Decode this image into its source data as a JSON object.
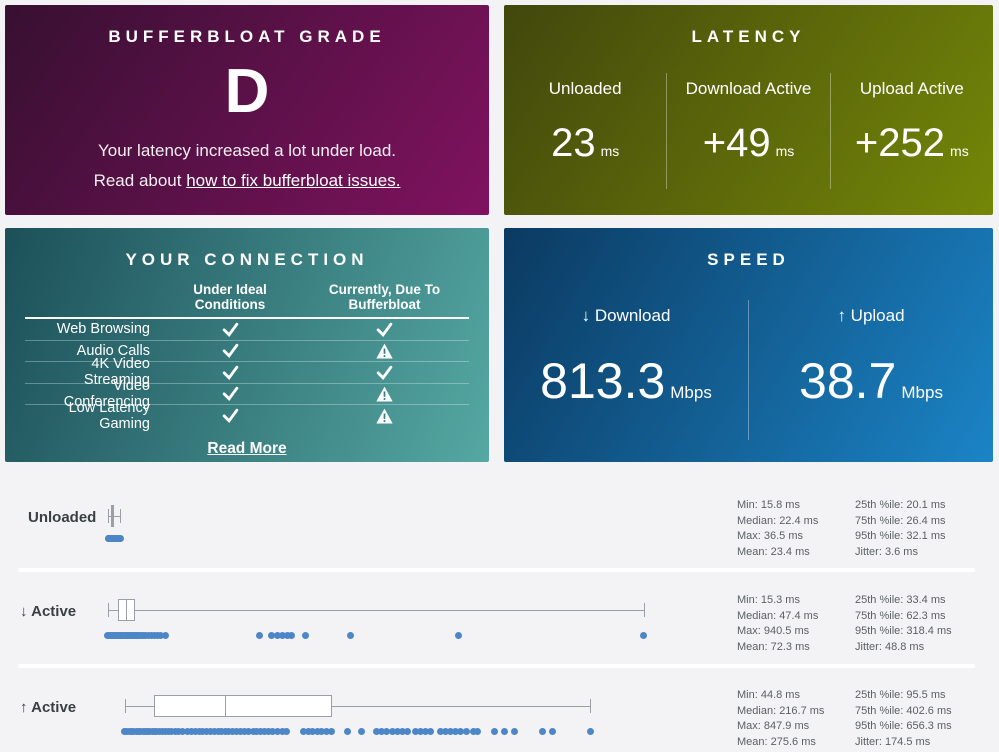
{
  "panels": {
    "grade": {
      "title": "BUFFERBLOAT GRADE",
      "grade": "D",
      "message": "Your latency increased a lot under load.",
      "read_prefix": "Read about ",
      "link_text": "how to fix bufferbloat issues."
    },
    "latency": {
      "title": "LATENCY",
      "unit": "ms",
      "columns": [
        {
          "label": "Unloaded",
          "value": "23"
        },
        {
          "label": "Download Active",
          "value": "+49"
        },
        {
          "label": "Upload Active",
          "value": "+252"
        }
      ]
    },
    "connection": {
      "title": "YOUR CONNECTION",
      "col_headers": [
        "Under Ideal Conditions",
        "Currently, Due To Bufferbloat"
      ],
      "rows": [
        {
          "label": "Web Browsing",
          "ideal": "check",
          "current": "check"
        },
        {
          "label": "Audio Calls",
          "ideal": "check",
          "current": "warn"
        },
        {
          "label": "4K Video Streaming",
          "ideal": "check",
          "current": "check"
        },
        {
          "label": "Video Conferencing",
          "ideal": "check",
          "current": "warn"
        },
        {
          "label": "Low Latency Gaming",
          "ideal": "check",
          "current": "warn"
        }
      ],
      "read_more": "Read More"
    },
    "speed": {
      "title": "SPEED",
      "unit": "Mbps",
      "columns": [
        {
          "arrow": "↓",
          "label": "Download",
          "value": "813.3"
        },
        {
          "arrow": "↑",
          "label": "Upload",
          "value": "38.7"
        }
      ]
    }
  },
  "chart_data": {
    "type": "boxplot",
    "x_range_ms": [
      0,
      960
    ],
    "unit": "ms",
    "stat_labels_left": [
      "Min",
      "Median",
      "Max",
      "Mean"
    ],
    "stat_labels_right": [
      "25th %ile",
      "75th %ile",
      "95th %ile",
      "Jitter"
    ],
    "rows": [
      {
        "label": "Unloaded",
        "box": {
          "min": 15.8,
          "q1": 20.1,
          "median": 22.4,
          "q3": 26.4,
          "max": 36.5
        },
        "stats": {
          "min": "15.8",
          "median": "22.4",
          "max": "36.5",
          "mean": "23.4",
          "p25": "20.1",
          "p75": "26.4",
          "p95": "32.1",
          "jitter": "3.6"
        },
        "dots": [
          15.8,
          16.6,
          17.4,
          18.2,
          19,
          19.8,
          20.5,
          21.2,
          21.9,
          22.4,
          23.1,
          23.8,
          24.5,
          25.2,
          25.9,
          26.4,
          27.2,
          28.1,
          29.2,
          30.4,
          31.6,
          33,
          34.6,
          36.5
        ]
      },
      {
        "label": "↓ Active",
        "box": {
          "min": 15.3,
          "q1": 33.4,
          "median": 47.4,
          "q3": 62.3,
          "max": 940.5
        },
        "stats": {
          "min": "15.3",
          "median": "47.4",
          "max": "940.5",
          "mean": "72.3",
          "p25": "33.4",
          "p75": "62.3",
          "p95": "318.4",
          "jitter": "48.8"
        },
        "dots": [
          15.3,
          17,
          19,
          21,
          23,
          25,
          27,
          29,
          31,
          33,
          35,
          37,
          39,
          41,
          43,
          45,
          47,
          49,
          51,
          53,
          55,
          57,
          59,
          61,
          64,
          67,
          70,
          73,
          77,
          81,
          85,
          90,
          95,
          101,
          107,
          114,
          277,
          298,
          309,
          317,
          325,
          333,
          356,
          435,
          621,
          940.5
        ]
      },
      {
        "label": "↑ Active",
        "box": {
          "min": 44.8,
          "q1": 95.5,
          "median": 216.7,
          "q3": 402.6,
          "max": 847.9
        },
        "stats": {
          "min": "44.8",
          "median": "216.7",
          "max": "847.9",
          "mean": "275.6",
          "p25": "95.5",
          "p75": "402.6",
          "p95": "656.3",
          "jitter": "174.5"
        },
        "dots": [
          44.8,
          48,
          52,
          56,
          60,
          64,
          68,
          72,
          76,
          80,
          84,
          88,
          92,
          96,
          100,
          105,
          110,
          115,
          120,
          126,
          132,
          138,
          145,
          152,
          159,
          166,
          173,
          179,
          186,
          193,
          199,
          206,
          212,
          218,
          224,
          230,
          237,
          244,
          251,
          258,
          266,
          272,
          279,
          286,
          293,
          300,
          308,
          316,
          324,
          353,
          361,
          369,
          377,
          385,
          393,
          401,
          429,
          453,
          479,
          488,
          497,
          506,
          515,
          524,
          533,
          546,
          555,
          563,
          572,
          589,
          598,
          607,
          616,
          625,
          634,
          646,
          654,
          683,
          700,
          717,
          765,
          783,
          847.9
        ]
      }
    ]
  },
  "colors": {
    "dot_blue": "#4d86c6",
    "box_gray": "#999fa5",
    "grade_gradient_start": "#371031",
    "grade_gradient_end": "#80125f",
    "latency_gradient_start": "#42470c",
    "latency_gradient_end": "#748708",
    "connection_gradient_start": "#1c5059",
    "connection_gradient_end": "#55a8a3",
    "speed_gradient_start": "#0b3a61",
    "speed_gradient_end": "#1b84c6",
    "warn_exclaim": "#2f7d85"
  }
}
